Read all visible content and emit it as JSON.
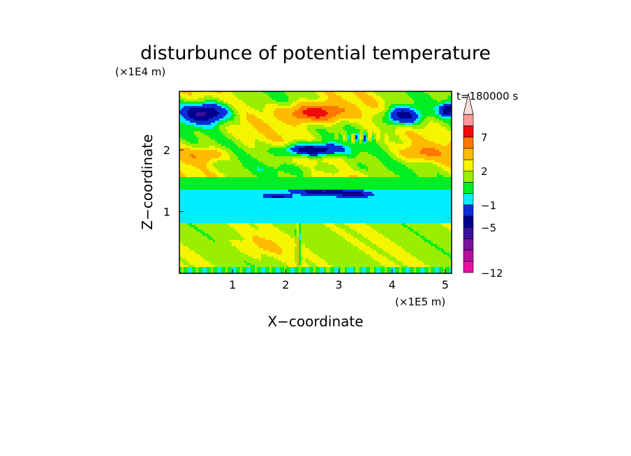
{
  "chart_data": {
    "type": "heatmap",
    "title": "disturbunce of potential temperature",
    "time_label": "t=180000 s",
    "xlabel": "X−coordinate",
    "ylabel": "Z−coordinate",
    "x_unit": "(×1E5 m)",
    "y_unit": "(×1E4 m)",
    "xlim": [
      0,
      5.12
    ],
    "ylim": [
      0,
      2.95
    ],
    "x_ticks": [
      1,
      2,
      3,
      4,
      5
    ],
    "y_ticks": [
      1,
      2
    ],
    "colorbar": {
      "levels": [
        -12,
        -11,
        -9,
        -7,
        -5,
        -3,
        -1,
        0,
        1,
        2,
        3,
        5,
        7,
        9,
        11
      ],
      "colors": [
        "#e8119e",
        "#b4109e",
        "#7a119e",
        "#3c109e",
        "#00008c",
        "#0a2dd6",
        "#00eeff",
        "#00ee22",
        "#9aee00",
        "#f5f500",
        "#ffbb00",
        "#ff7700",
        "#ee0a0a",
        "#ff9a9a",
        "#ffdddd"
      ],
      "labels": [
        {
          "value": -12,
          "text": "−12"
        },
        {
          "value": -5,
          "text": "−5"
        },
        {
          "value": -1,
          "text": "−1"
        },
        {
          "value": 2,
          "text": "2"
        },
        {
          "value": 7,
          "text": "7"
        }
      ]
    }
  }
}
